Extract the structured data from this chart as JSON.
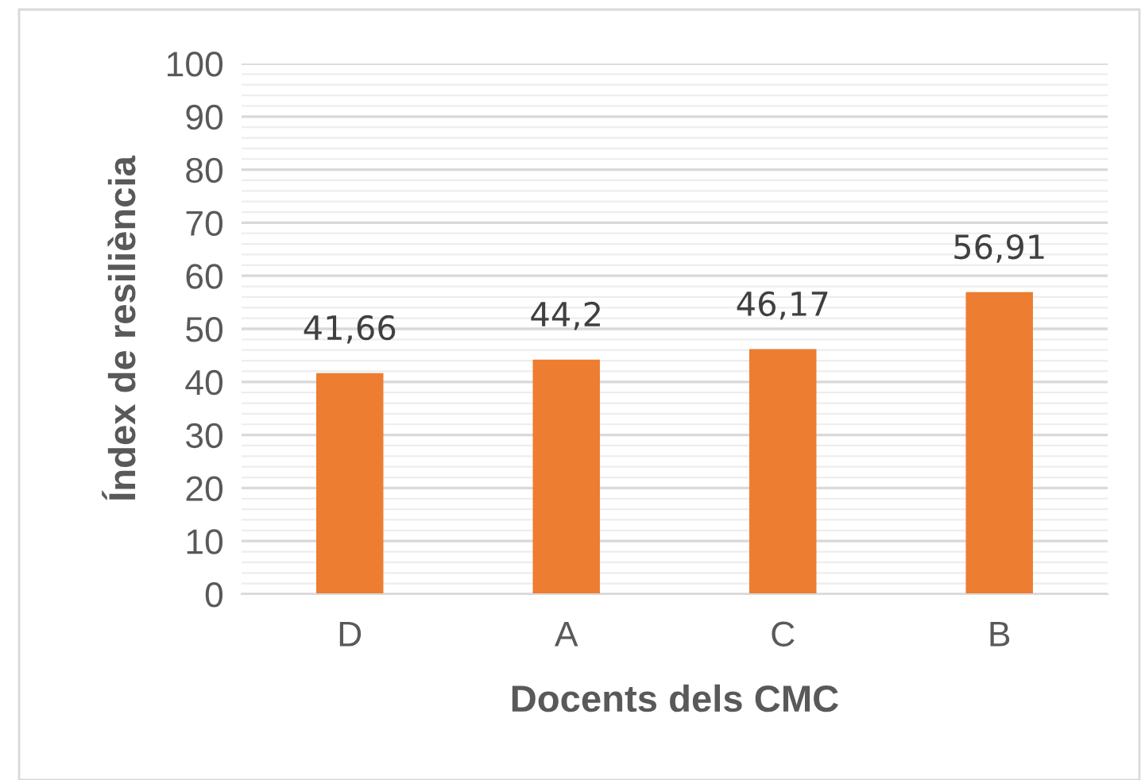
{
  "chart_data": {
    "type": "bar",
    "xlabel": "Docents dels CMC",
    "ylabel": "Índex de resiliència",
    "categories": [
      "D",
      "A",
      "C",
      "B"
    ],
    "values": [
      41.66,
      44.2,
      46.17,
      56.91
    ],
    "value_labels": [
      "41,66",
      "44,2",
      "46,17",
      "56,91"
    ],
    "color": "#ed7d31",
    "ylim": [
      0,
      100
    ],
    "yticks": [
      0,
      {
        "value": 2,
        "label": null
      },
      {
        "value": 4,
        "label": null
      },
      {
        "value": 6,
        "label": null
      },
      {
        "value": 8,
        "label": null
      },
      10,
      {
        "value": 12,
        "label": null
      },
      {
        "value": 14,
        "label": null
      },
      {
        "value": 16,
        "label": null
      },
      {
        "value": 18,
        "label": null
      },
      20,
      {
        "value": 22,
        "label": null
      },
      {
        "value": 24,
        "label": null
      },
      {
        "value": 26,
        "label": null
      },
      {
        "value": 28,
        "label": null
      },
      30,
      {
        "value": 32,
        "label": null
      },
      {
        "value": 34,
        "label": null
      },
      {
        "value": 36,
        "label": null
      },
      {
        "value": 38,
        "label": null
      },
      40,
      {
        "value": 42,
        "label": null
      },
      {
        "value": 44,
        "label": null
      },
      {
        "value": 46,
        "label": null
      },
      {
        "value": 48,
        "label": null
      },
      50,
      {
        "value": 52,
        "label": null
      },
      {
        "value": 54,
        "label": null
      },
      {
        "value": 56,
        "label": null
      },
      {
        "value": 58,
        "label": null
      },
      60,
      {
        "value": 62,
        "label": null
      },
      {
        "value": 64,
        "label": null
      },
      {
        "value": 66,
        "label": null
      },
      {
        "value": 68,
        "label": null
      },
      70,
      {
        "value": 72,
        "label": null
      },
      {
        "value": 74,
        "label": null
      },
      {
        "value": 76,
        "label": null
      },
      {
        "value": 78,
        "label": null
      },
      80,
      {
        "value": 82,
        "label": null
      },
      {
        "value": 84,
        "label": null
      },
      {
        "value": 86,
        "label": null
      },
      {
        "value": 88,
        "label": null
      },
      90,
      {
        "value": 92,
        "label": null
      },
      {
        "value": 94,
        "label": null
      },
      {
        "value": 96,
        "label": null
      },
      {
        "value": 98,
        "label": null
      },
      100
    ],
    "grid": "y"
  }
}
